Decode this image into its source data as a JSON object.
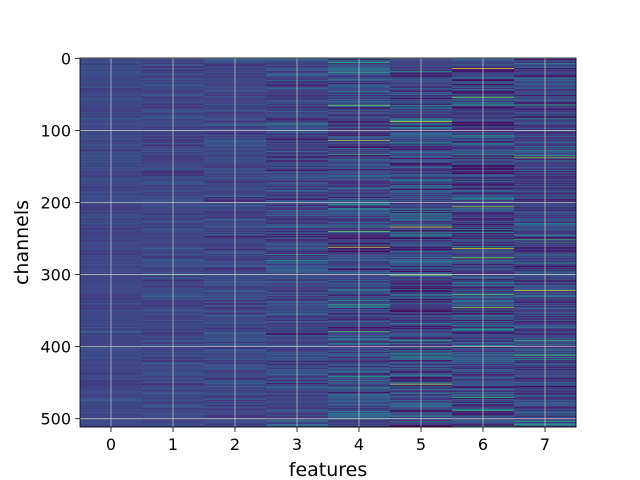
{
  "chart_data": {
    "type": "heatmap",
    "title": "",
    "xlabel": "features",
    "ylabel": "channels",
    "x_ticks": [
      0,
      1,
      2,
      3,
      4,
      5,
      6,
      7
    ],
    "y_ticks": [
      0,
      100,
      200,
      300,
      400,
      500
    ],
    "xlim": [
      -0.5,
      7.5
    ],
    "ylim": [
      511.5,
      -0.5
    ],
    "n_columns": 8,
    "n_rows": 512,
    "grid": true,
    "colormap": "viridis",
    "colorbar": false,
    "column_spread": [
      0.1,
      0.14,
      0.17,
      0.22,
      0.3,
      0.37,
      0.37,
      0.3
    ],
    "baseline_value": 0.22,
    "highlights": [
      {
        "column": 4,
        "row": 262,
        "value": 0.95
      },
      {
        "column": 4,
        "row": 114,
        "value": 0.85
      },
      {
        "column": 5,
        "row": 88,
        "value": 0.95
      },
      {
        "column": 5,
        "row": 234,
        "value": 0.95
      },
      {
        "column": 5,
        "row": 262,
        "value": 0.0
      },
      {
        "column": 5,
        "row": 452,
        "value": 0.9
      },
      {
        "column": 6,
        "row": 14,
        "value": 0.95
      },
      {
        "column": 6,
        "row": 54,
        "value": 0.8
      },
      {
        "column": 6,
        "row": 264,
        "value": 0.95
      },
      {
        "column": 6,
        "row": 324,
        "value": 0.05
      },
      {
        "column": 6,
        "row": 346,
        "value": 0.85
      },
      {
        "column": 7,
        "row": 322,
        "value": 0.9
      },
      {
        "column": 7,
        "row": 138,
        "value": 0.85
      }
    ]
  },
  "style": {
    "grid_color": "#d0d0d0",
    "axes_edge_color": "#000000"
  }
}
